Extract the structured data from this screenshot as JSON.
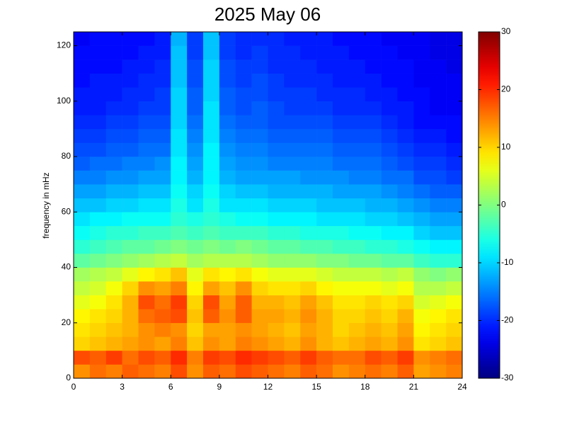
{
  "chart_data": {
    "type": "heatmap",
    "title": "2025 May 06",
    "y_label": "frequency in mHz",
    "bins": [
      0,
      1,
      2,
      3,
      4,
      5,
      6,
      7,
      8,
      9,
      10,
      11,
      12,
      13,
      14,
      15,
      16,
      17,
      18,
      19,
      20,
      21,
      22,
      23,
      24
    ],
    "ybins": [
      0,
      5,
      10,
      15,
      20,
      25,
      30,
      35,
      40,
      45,
      50,
      55,
      60,
      65,
      70,
      75,
      80,
      85,
      90,
      95,
      100,
      105,
      110,
      115,
      120,
      125
    ],
    "values": [
      [
        14,
        16,
        15,
        17,
        16,
        15,
        18,
        14,
        17,
        16,
        18,
        17,
        16,
        15,
        17,
        16,
        14,
        15,
        16,
        15,
        17,
        13,
        14,
        15
      ],
      [
        18,
        17,
        19,
        16,
        18,
        17,
        20,
        15,
        19,
        18,
        20,
        19,
        18,
        17,
        19,
        17,
        16,
        16,
        18,
        17,
        19,
        14,
        15,
        16
      ],
      [
        10,
        11,
        12,
        13,
        14,
        13,
        15,
        11,
        14,
        13,
        15,
        14,
        13,
        12,
        14,
        12,
        11,
        12,
        13,
        12,
        14,
        9,
        10,
        11
      ],
      [
        9,
        10,
        11,
        12,
        14,
        15,
        14,
        10,
        13,
        13,
        14,
        13,
        12,
        11,
        13,
        12,
        10,
        11,
        12,
        11,
        13,
        8,
        9,
        10
      ],
      [
        8,
        9,
        10,
        12,
        16,
        17,
        18,
        11,
        17,
        14,
        17,
        13,
        13,
        12,
        14,
        12,
        10,
        10,
        11,
        10,
        12,
        7,
        8,
        9
      ],
      [
        6,
        7,
        9,
        12,
        18,
        16,
        19,
        10,
        18,
        13,
        17,
        12,
        12,
        11,
        13,
        11,
        9,
        9,
        10,
        9,
        10,
        5,
        6,
        7
      ],
      [
        4,
        5,
        7,
        10,
        14,
        13,
        15,
        8,
        13,
        11,
        14,
        10,
        9,
        9,
        10,
        8,
        7,
        7,
        7,
        6,
        7,
        3,
        3,
        4
      ],
      [
        2,
        3,
        4,
        6,
        8,
        9,
        11,
        6,
        9,
        8,
        9,
        7,
        6,
        6,
        6,
        5,
        4,
        4,
        4,
        3,
        4,
        1,
        0,
        1
      ],
      [
        -2,
        -1,
        0,
        1,
        2,
        3,
        4,
        2,
        3,
        3,
        3,
        2,
        1,
        1,
        1,
        0,
        0,
        -1,
        -1,
        -2,
        -2,
        -4,
        -5,
        -5
      ],
      [
        -5,
        -4,
        -3,
        -2,
        -2,
        -1,
        0,
        -1,
        0,
        -1,
        0,
        -1,
        -2,
        -2,
        -3,
        -3,
        -4,
        -4,
        -5,
        -5,
        -6,
        -7,
        -8,
        -8
      ],
      [
        -7,
        -6,
        -5,
        -5,
        -4,
        -4,
        -3,
        -4,
        -3,
        -4,
        -4,
        -4,
        -5,
        -5,
        -6,
        -6,
        -6,
        -7,
        -7,
        -8,
        -8,
        -10,
        -11,
        -11
      ],
      [
        -9,
        -8,
        -8,
        -7,
        -7,
        -7,
        -5,
        -6,
        -5,
        -6,
        -7,
        -7,
        -8,
        -8,
        -8,
        -9,
        -9,
        -9,
        -10,
        -10,
        -11,
        -12,
        -13,
        -13
      ],
      [
        -11,
        -11,
        -10,
        -10,
        -9,
        -9,
        -6,
        -9,
        -6,
        -9,
        -9,
        -9,
        -10,
        -10,
        -10,
        -11,
        -11,
        -11,
        -12,
        -12,
        -13,
        -14,
        -15,
        -15
      ],
      [
        -13,
        -13,
        -12,
        -12,
        -11,
        -11,
        -7,
        -10,
        -7,
        -10,
        -11,
        -11,
        -12,
        -12,
        -12,
        -12,
        -13,
        -13,
        -13,
        -14,
        -15,
        -16,
        -17,
        -17
      ],
      [
        -15,
        -15,
        -14,
        -14,
        -13,
        -13,
        -8,
        -12,
        -8,
        -12,
        -13,
        -13,
        -13,
        -13,
        -14,
        -14,
        -14,
        -15,
        -15,
        -16,
        -16,
        -18,
        -18,
        -19
      ],
      [
        -17,
        -16,
        -16,
        -15,
        -15,
        -14,
        -8,
        -13,
        -8,
        -13,
        -14,
        -14,
        -15,
        -15,
        -15,
        -15,
        -16,
        -16,
        -16,
        -17,
        -18,
        -19,
        -19,
        -20
      ],
      [
        -18,
        -18,
        -17,
        -17,
        -16,
        -16,
        -9,
        -14,
        -8,
        -14,
        -15,
        -15,
        -16,
        -16,
        -16,
        -16,
        -17,
        -17,
        -17,
        -18,
        -19,
        -20,
        -20,
        -21
      ],
      [
        -19,
        -19,
        -18,
        -18,
        -17,
        -17,
        -9,
        -15,
        -9,
        -15,
        -16,
        -16,
        -17,
        -17,
        -17,
        -17,
        -18,
        -18,
        -18,
        -19,
        -20,
        -21,
        -21,
        -22
      ],
      [
        -20,
        -20,
        -19,
        -19,
        -18,
        -18,
        -10,
        -16,
        -9,
        -16,
        -17,
        -17,
        -18,
        -18,
        -18,
        -18,
        -19,
        -19,
        -19,
        -20,
        -21,
        -22,
        -22,
        -22
      ],
      [
        -21,
        -21,
        -20,
        -20,
        -19,
        -19,
        -10,
        -17,
        -9,
        -17,
        -18,
        -17,
        -18,
        -19,
        -19,
        -19,
        -20,
        -20,
        -20,
        -21,
        -21,
        -22,
        -23,
        -23
      ],
      [
        -21,
        -21,
        -21,
        -20,
        -20,
        -19,
        -10,
        -17,
        -10,
        -17,
        -18,
        -18,
        -19,
        -19,
        -19,
        -20,
        -20,
        -20,
        -21,
        -21,
        -22,
        -22,
        -23,
        -23
      ],
      [
        -22,
        -21,
        -21,
        -21,
        -20,
        -20,
        -11,
        -18,
        -10,
        -18,
        -19,
        -18,
        -19,
        -20,
        -20,
        -20,
        -21,
        -21,
        -21,
        -22,
        -22,
        -23,
        -23,
        -23
      ],
      [
        -22,
        -22,
        -22,
        -21,
        -21,
        -20,
        -11,
        -18,
        -10,
        -18,
        -19,
        -19,
        -20,
        -20,
        -20,
        -21,
        -21,
        -21,
        -22,
        -22,
        -22,
        -23,
        -23,
        -24
      ],
      [
        -22,
        -22,
        -22,
        -22,
        -21,
        -21,
        -11,
        -19,
        -11,
        -19,
        -20,
        -19,
        -20,
        -20,
        -21,
        -21,
        -21,
        -22,
        -22,
        -22,
        -23,
        -23,
        -24,
        -24
      ],
      [
        -23,
        -22,
        -22,
        -22,
        -22,
        -21,
        -12,
        -19,
        -11,
        -19,
        -20,
        -20,
        -20,
        -21,
        -21,
        -21,
        -22,
        -22,
        -22,
        -23,
        -23,
        -23,
        -24,
        -24
      ]
    ],
    "xlim": [
      0,
      24
    ],
    "xticks": [
      0,
      3,
      6,
      9,
      12,
      15,
      18,
      21,
      24
    ],
    "ylim": [
      0,
      125
    ],
    "yticks": [
      0,
      20,
      40,
      60,
      80,
      100,
      120
    ],
    "colormap": "jet",
    "clim": [
      -30,
      30
    ],
    "cticks": [
      -30,
      -20,
      -10,
      0,
      10,
      20,
      30
    ]
  }
}
